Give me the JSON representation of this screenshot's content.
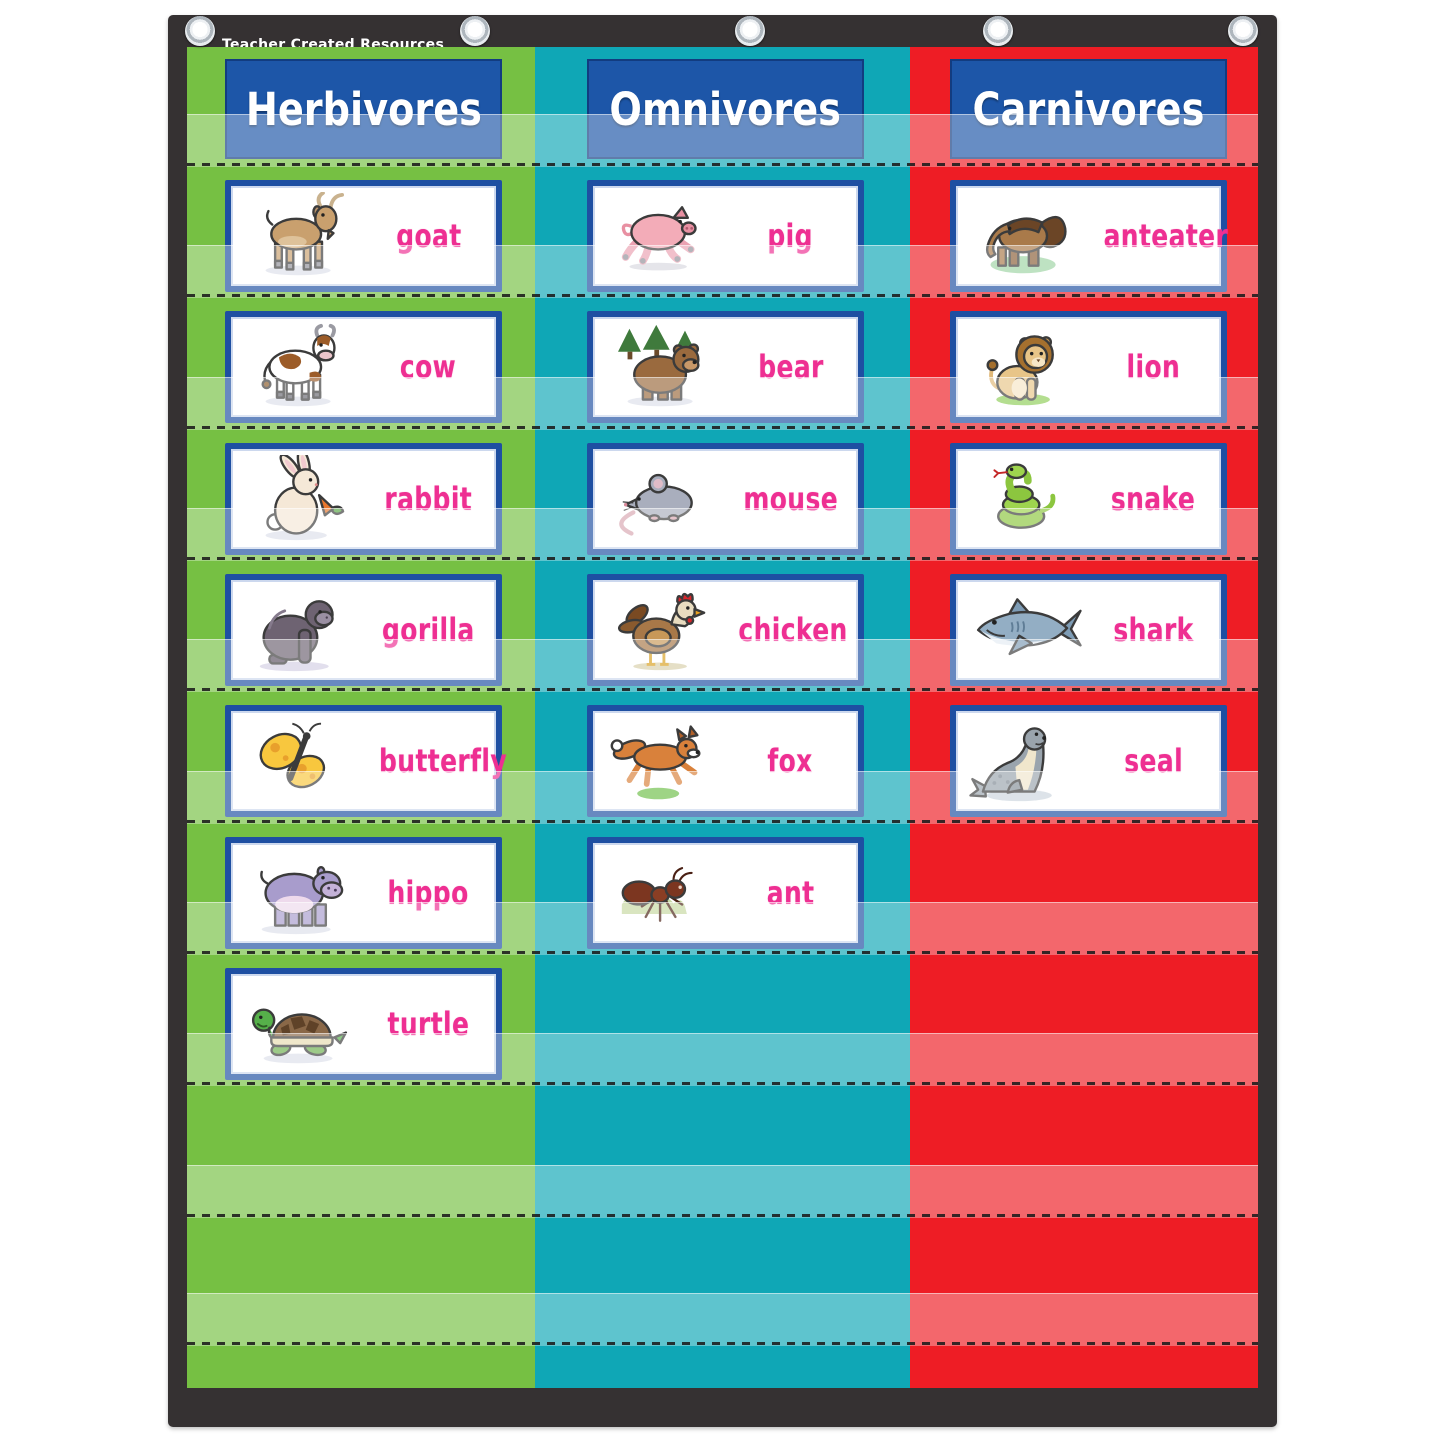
{
  "brand": "Teacher Created Resources",
  "board": {
    "columns": [
      {
        "title": "Herbivores",
        "theme": "green",
        "cards": [
          {
            "label": "goat"
          },
          {
            "label": "cow"
          },
          {
            "label": "rabbit"
          },
          {
            "label": "gorilla"
          },
          {
            "label": "butterfly"
          },
          {
            "label": "hippo"
          },
          {
            "label": "turtle"
          }
        ]
      },
      {
        "title": "Omnivores",
        "theme": "teal",
        "cards": [
          {
            "label": "pig"
          },
          {
            "label": "bear"
          },
          {
            "label": "mouse"
          },
          {
            "label": "chicken"
          },
          {
            "label": "fox"
          },
          {
            "label": "ant"
          }
        ]
      },
      {
        "title": "Carnivores",
        "theme": "red",
        "cards": [
          {
            "label": "anteater"
          },
          {
            "label": "lion"
          },
          {
            "label": "snake"
          },
          {
            "label": "shark"
          },
          {
            "label": "seal"
          }
        ]
      }
    ]
  },
  "row_count": 10,
  "grommet_count": 5,
  "colors": {
    "green": "#76c043",
    "teal": "#0fa7b6",
    "red": "#ee1d25",
    "header_blue": "#1d56a8",
    "card_border": "#1e4fa2",
    "label_pink": "#ee2f92",
    "frame_black": "#353132"
  }
}
